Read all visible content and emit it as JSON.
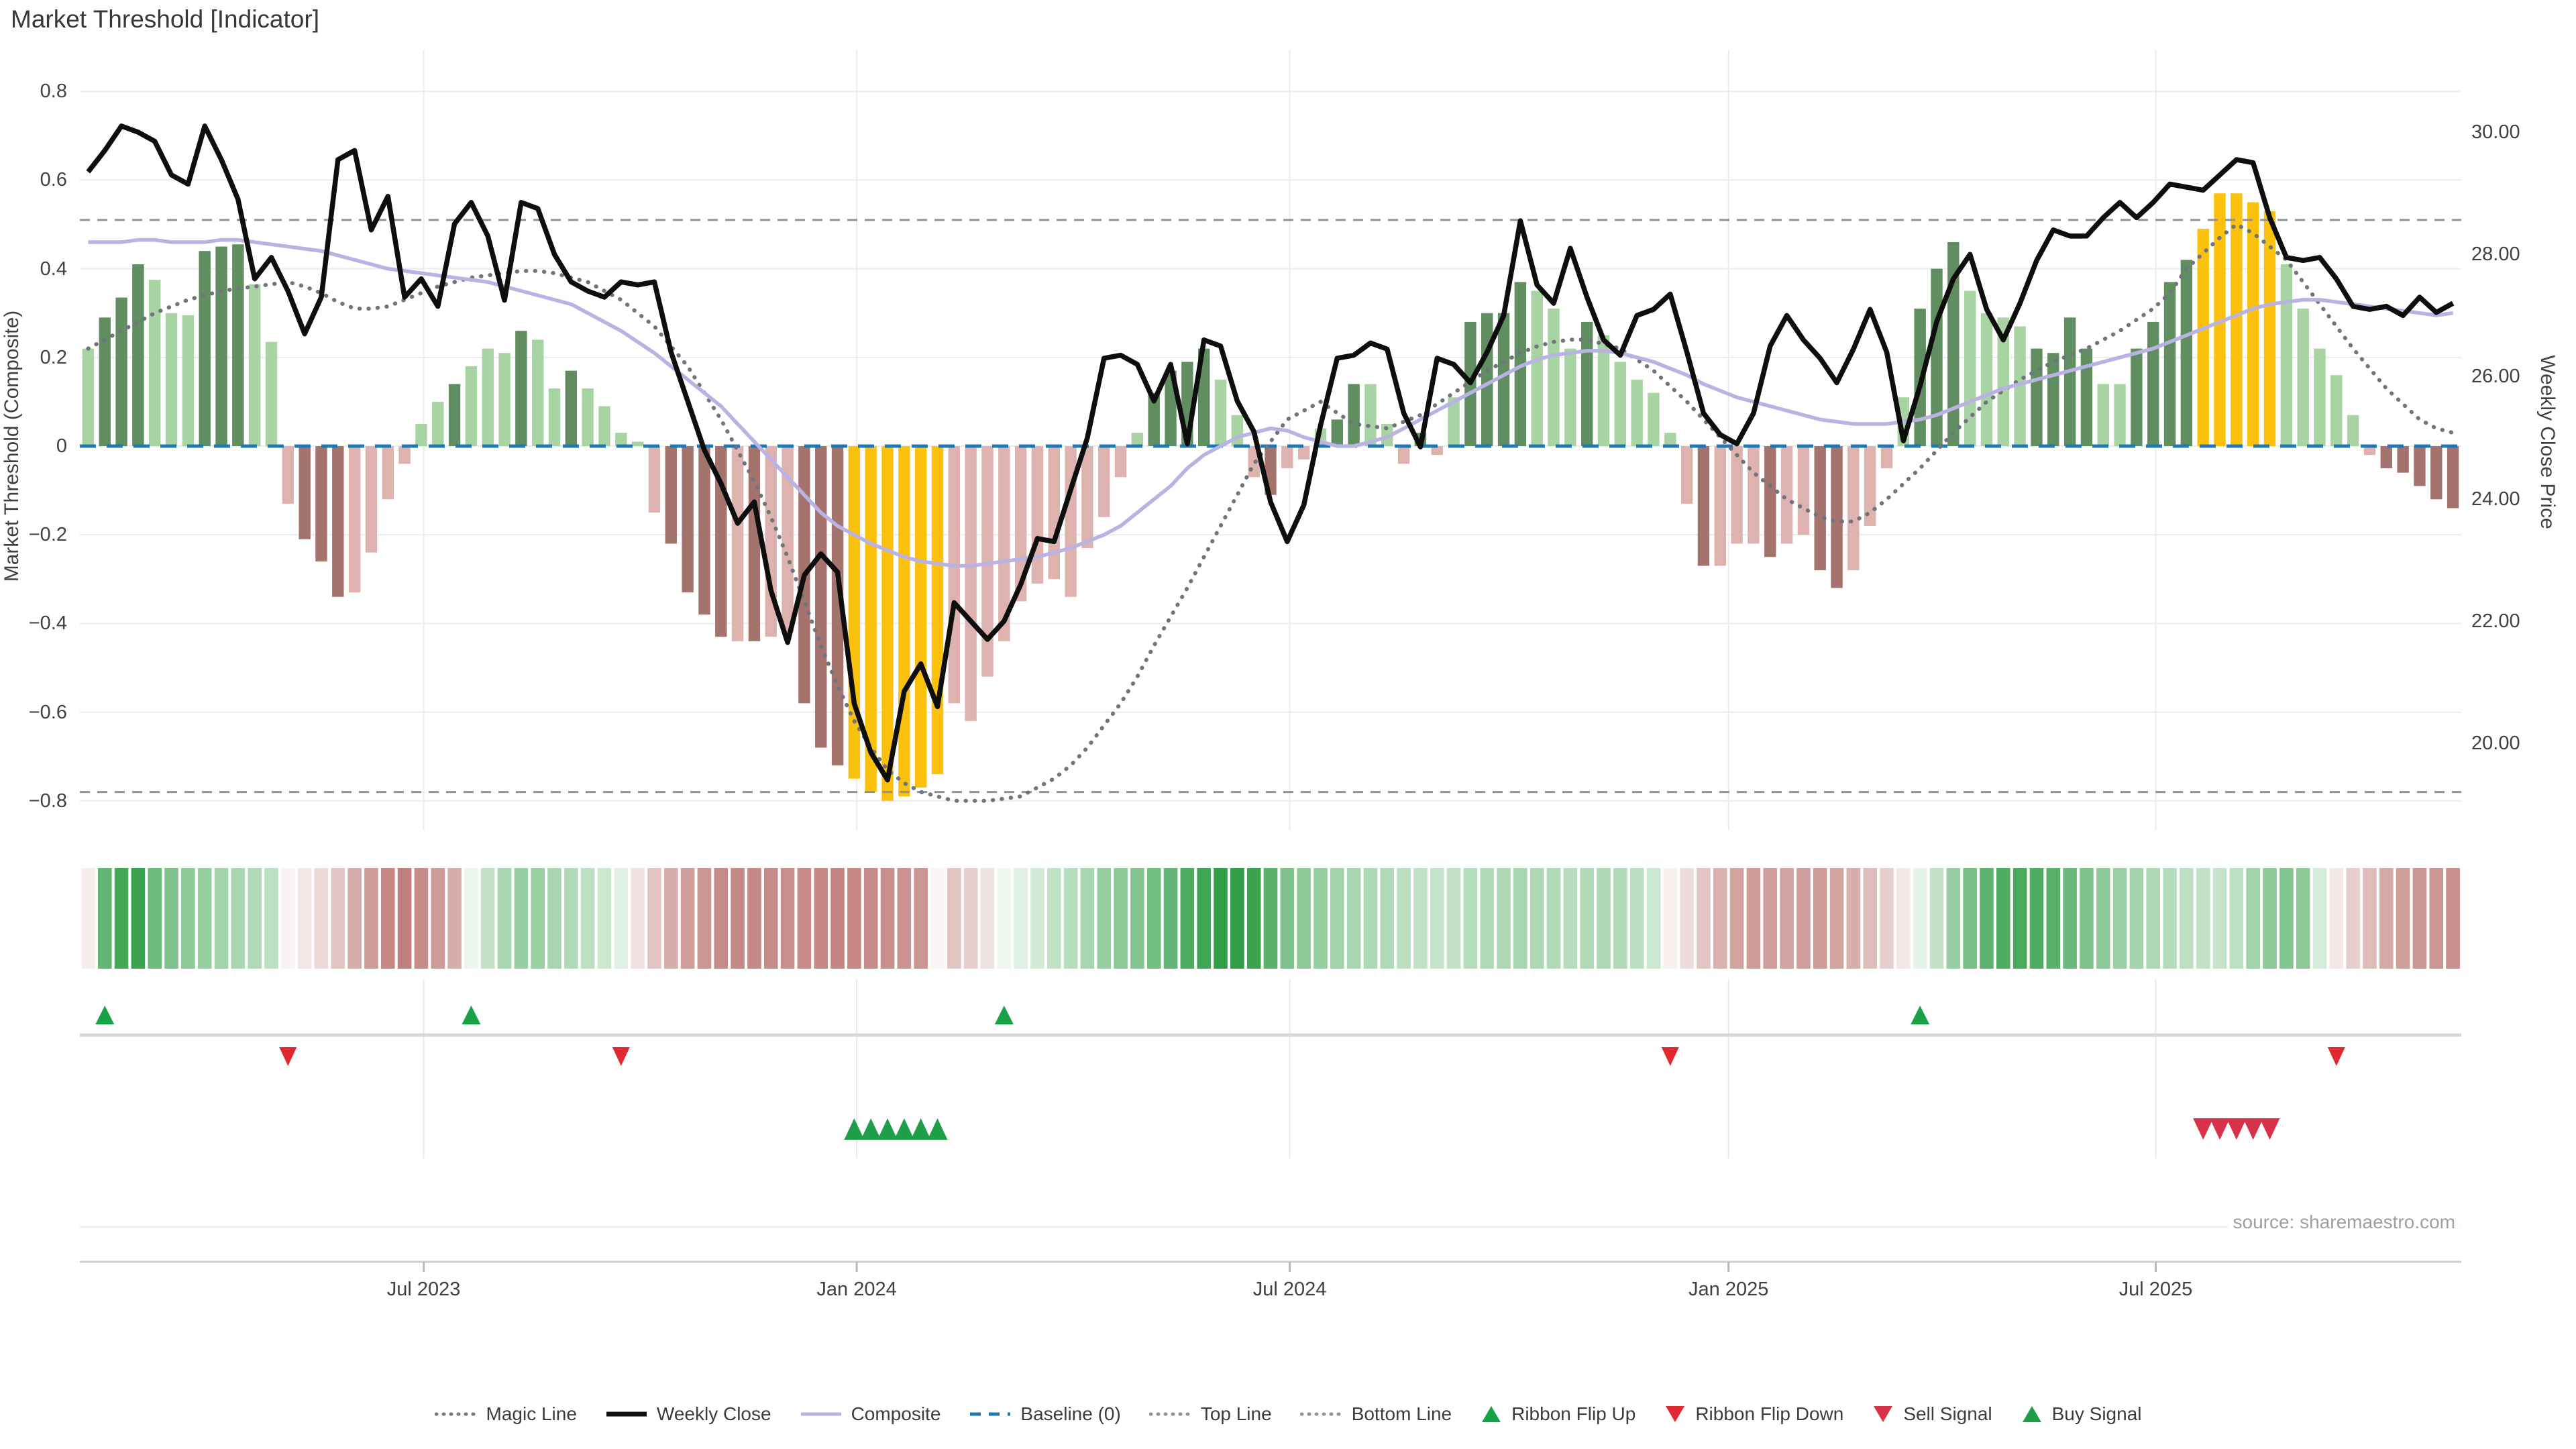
{
  "title": "Market Threshold [Indicator]",
  "source": "source: sharemaestro.com",
  "axes": {
    "left_title": "Market Threshold (Composite)",
    "left_ticks": [
      "0.8",
      "0.6",
      "0.4",
      "0.2",
      "0",
      "−0.2",
      "−0.4",
      "−0.6",
      "−0.8"
    ],
    "left_tick_values": [
      0.8,
      0.6,
      0.4,
      0.2,
      0,
      -0.2,
      -0.4,
      -0.6,
      -0.8
    ],
    "right_title": "Weekly Close Price",
    "right_ticks": [
      "30.00",
      "28.00",
      "26.00",
      "24.00",
      "22.00",
      "20.00"
    ],
    "right_tick_values": [
      30,
      28,
      26,
      24,
      22,
      20
    ],
    "x_ticks": [
      "Jul 2023",
      "Jan 2024",
      "Jul 2024",
      "Jan 2025",
      "Jul 2025"
    ],
    "x_tick_week_positions": [
      20.65,
      46.65,
      72.65,
      99.0,
      124.65
    ]
  },
  "legend": {
    "items": [
      {
        "label": "Magic Line",
        "glyph": "dotted-line",
        "color": "#73787f"
      },
      {
        "label": "Weekly Close",
        "glyph": "solid-line",
        "color": "#0e0e0e"
      },
      {
        "label": "Composite",
        "glyph": "solid-line",
        "color": "#b8b3e2"
      },
      {
        "label": "Baseline (0)",
        "glyph": "dashed-line",
        "color": "#1f77b4"
      },
      {
        "label": "Top Line",
        "glyph": "dotted-line",
        "color": "#8d929b"
      },
      {
        "label": "Bottom Line",
        "glyph": "dotted-line",
        "color": "#8d929b"
      },
      {
        "label": "Ribbon Flip Up",
        "glyph": "triangle-up",
        "color": "#17a345"
      },
      {
        "label": "Ribbon Flip Down",
        "glyph": "triangle-down",
        "color": "#e02a2f"
      },
      {
        "label": "Sell Signal",
        "glyph": "triangle-down",
        "color": "#d8324a"
      },
      {
        "label": "Buy Signal",
        "glyph": "triangle-up",
        "color": "#1e9e46"
      }
    ]
  },
  "chart_data": {
    "type": "combo: weekly bar histogram + line overlays + signal ribbon",
    "n_weeks": 143,
    "date_range_note": "weekly, Feb 2023 - Nov 2025",
    "left_axis_range": [
      -0.86,
      0.87
    ],
    "right_axis_range": [
      18.7,
      31.2
    ],
    "grid": true,
    "legend_position": "bottom-center",
    "top_line": 0.51,
    "bottom_line": -0.78,
    "baseline": 0,
    "bar_color_map": {
      "lg": "#a8d3a2",
      "dg": "#618e60",
      "lp": "#deb2ae",
      "dr": "#a4736e",
      "au": "#fcc10d"
    },
    "threshold_bars": {
      "values": [
        0.22,
        0.29,
        0.335,
        0.41,
        0.375,
        0.3,
        0.295,
        0.44,
        0.45,
        0.455,
        0.365,
        0.235,
        -0.13,
        -0.21,
        -0.26,
        -0.34,
        -0.33,
        -0.24,
        -0.12,
        -0.04,
        0.05,
        0.1,
        0.14,
        0.18,
        0.22,
        0.21,
        0.26,
        0.24,
        0.13,
        0.17,
        0.13,
        0.09,
        0.03,
        0.01,
        -0.15,
        -0.22,
        -0.33,
        -0.38,
        -0.43,
        -0.44,
        -0.44,
        -0.43,
        -0.42,
        -0.58,
        -0.68,
        -0.72,
        -0.75,
        -0.78,
        -0.8,
        -0.79,
        -0.77,
        -0.74,
        -0.58,
        -0.62,
        -0.52,
        -0.44,
        -0.35,
        -0.31,
        -0.3,
        -0.34,
        -0.23,
        -0.16,
        -0.07,
        0.03,
        0.12,
        0.17,
        0.19,
        0.22,
        0.15,
        0.07,
        -0.07,
        -0.11,
        -0.05,
        -0.03,
        0.04,
        0.06,
        0.14,
        0.14,
        0.05,
        -0.04,
        0.03,
        -0.02,
        0.11,
        0.28,
        0.3,
        0.3,
        0.37,
        0.35,
        0.31,
        0.22,
        0.28,
        0.25,
        0.19,
        0.15,
        0.12,
        0.03,
        -0.13,
        -0.27,
        -0.27,
        -0.22,
        -0.22,
        -0.25,
        -0.22,
        -0.2,
        -0.28,
        -0.32,
        -0.28,
        -0.18,
        -0.05,
        0.11,
        0.31,
        0.4,
        0.46,
        0.35,
        0.3,
        0.29,
        0.27,
        0.22,
        0.21,
        0.29,
        0.22,
        0.14,
        0.14,
        0.22,
        0.28,
        0.37,
        0.42,
        0.49,
        0.57,
        0.57,
        0.55,
        0.53,
        0.41,
        0.31,
        0.22,
        0.16,
        0.07,
        -0.02,
        -0.05,
        -0.06,
        -0.09,
        -0.12,
        -0.14
      ],
      "colors": [
        "lg",
        "dg",
        "dg",
        "dg",
        "lg",
        "lg",
        "lg",
        "dg",
        "dg",
        "dg",
        "lg",
        "lg",
        "lp",
        "dr",
        "dr",
        "dr",
        "lp",
        "lp",
        "lp",
        "lp",
        "lg",
        "lg",
        "dg",
        "lg",
        "lg",
        "lg",
        "dg",
        "lg",
        "lg",
        "dg",
        "lg",
        "lg",
        "lg",
        "lg",
        "lp",
        "dr",
        "dr",
        "dr",
        "dr",
        "lp",
        "dr",
        "lp",
        "lp",
        "dr",
        "dr",
        "dr",
        "au",
        "au",
        "au",
        "au",
        "au",
        "au",
        "lp",
        "lp",
        "lp",
        "lp",
        "lp",
        "lp",
        "lp",
        "lp",
        "lp",
        "lp",
        "lp",
        "lg",
        "dg",
        "dg",
        "dg",
        "dg",
        "lg",
        "lg",
        "lp",
        "dr",
        "lp",
        "lp",
        "lg",
        "dg",
        "dg",
        "lg",
        "lg",
        "lp",
        "dg",
        "lp",
        "lg",
        "dg",
        "dg",
        "dg",
        "dg",
        "lg",
        "lg",
        "lg",
        "dg",
        "lg",
        "lg",
        "lg",
        "lg",
        "lg",
        "lp",
        "dr",
        "lp",
        "lp",
        "lp",
        "dr",
        "lp",
        "lp",
        "dr",
        "dr",
        "lp",
        "lp",
        "lp",
        "lg",
        "dg",
        "dg",
        "dg",
        "lg",
        "lg",
        "lg",
        "lg",
        "dg",
        "dg",
        "dg",
        "dg",
        "lg",
        "lg",
        "dg",
        "dg",
        "dg",
        "dg",
        "au",
        "au",
        "au",
        "au",
        "au",
        "lg",
        "lg",
        "lg",
        "lg",
        "lg",
        "lp",
        "dr",
        "dr",
        "dr",
        "dr",
        "dr"
      ]
    },
    "weekly_close": [
      29.35,
      29.7,
      30.1,
      30.0,
      29.85,
      29.3,
      29.15,
      30.1,
      29.55,
      28.9,
      27.6,
      27.95,
      27.4,
      26.7,
      27.3,
      29.55,
      29.7,
      28.4,
      28.95,
      27.3,
      27.6,
      27.15,
      28.5,
      28.85,
      28.3,
      27.25,
      28.85,
      28.75,
      28.0,
      27.55,
      27.4,
      27.3,
      27.55,
      27.5,
      27.55,
      26.4,
      25.6,
      24.8,
      24.25,
      23.6,
      23.95,
      22.5,
      21.65,
      22.75,
      23.1,
      22.8,
      20.65,
      19.85,
      19.4,
      20.85,
      21.3,
      20.6,
      22.3,
      22.0,
      21.7,
      22.0,
      22.6,
      23.35,
      23.3,
      24.15,
      25.0,
      26.3,
      26.35,
      26.2,
      25.6,
      26.2,
      24.9,
      26.6,
      26.5,
      25.6,
      25.1,
      23.95,
      23.3,
      23.9,
      25.2,
      26.3,
      26.35,
      26.55,
      26.45,
      25.4,
      24.85,
      26.3,
      26.2,
      25.9,
      26.4,
      27.0,
      28.55,
      27.5,
      27.2,
      28.1,
      27.3,
      26.6,
      26.35,
      27.0,
      27.1,
      27.35,
      26.4,
      25.4,
      25.05,
      24.9,
      25.4,
      26.5,
      27.0,
      26.6,
      26.3,
      25.9,
      26.45,
      27.1,
      26.4,
      24.95,
      25.85,
      26.9,
      27.6,
      28.0,
      27.1,
      26.6,
      27.2,
      27.9,
      28.4,
      28.3,
      28.3,
      28.6,
      28.85,
      28.6,
      28.85,
      29.15,
      29.1,
      29.05,
      29.3,
      29.55,
      29.5,
      28.6,
      27.95,
      27.9,
      27.95,
      27.6,
      27.15,
      27.1,
      27.15,
      27.0,
      27.3,
      27.05,
      27.2
    ],
    "composite": [
      0.46,
      0.46,
      0.46,
      0.465,
      0.465,
      0.46,
      0.46,
      0.46,
      0.465,
      0.465,
      0.46,
      0.455,
      0.45,
      0.445,
      0.44,
      0.43,
      0.42,
      0.41,
      0.4,
      0.395,
      0.39,
      0.385,
      0.38,
      0.375,
      0.37,
      0.36,
      0.35,
      0.34,
      0.33,
      0.32,
      0.3,
      0.28,
      0.26,
      0.235,
      0.21,
      0.18,
      0.15,
      0.12,
      0.09,
      0.05,
      0.01,
      -0.03,
      -0.07,
      -0.11,
      -0.15,
      -0.18,
      -0.2,
      -0.22,
      -0.235,
      -0.25,
      -0.26,
      -0.265,
      -0.27,
      -0.27,
      -0.265,
      -0.26,
      -0.255,
      -0.25,
      -0.24,
      -0.23,
      -0.215,
      -0.2,
      -0.18,
      -0.15,
      -0.12,
      -0.09,
      -0.05,
      -0.02,
      0.0,
      0.02,
      0.03,
      0.04,
      0.035,
      0.02,
      0.01,
      0.0,
      0.0,
      0.01,
      0.02,
      0.04,
      0.06,
      0.08,
      0.1,
      0.12,
      0.14,
      0.16,
      0.18,
      0.195,
      0.205,
      0.21,
      0.215,
      0.215,
      0.21,
      0.2,
      0.19,
      0.175,
      0.16,
      0.14,
      0.125,
      0.11,
      0.1,
      0.09,
      0.08,
      0.07,
      0.06,
      0.055,
      0.05,
      0.05,
      0.05,
      0.055,
      0.06,
      0.07,
      0.085,
      0.1,
      0.115,
      0.13,
      0.14,
      0.15,
      0.16,
      0.17,
      0.18,
      0.19,
      0.2,
      0.21,
      0.22,
      0.235,
      0.25,
      0.265,
      0.28,
      0.295,
      0.31,
      0.32,
      0.325,
      0.33,
      0.33,
      0.325,
      0.32,
      0.315,
      0.31,
      0.305,
      0.3,
      0.295,
      0.3
    ],
    "magic_line": [
      0.22,
      0.24,
      0.26,
      0.28,
      0.3,
      0.315,
      0.33,
      0.34,
      0.35,
      0.355,
      0.36,
      0.365,
      0.37,
      0.36,
      0.345,
      0.325,
      0.31,
      0.31,
      0.315,
      0.33,
      0.345,
      0.36,
      0.37,
      0.38,
      0.385,
      0.39,
      0.395,
      0.395,
      0.39,
      0.38,
      0.37,
      0.35,
      0.33,
      0.3,
      0.27,
      0.225,
      0.18,
      0.12,
      0.06,
      -0.01,
      -0.08,
      -0.16,
      -0.25,
      -0.35,
      -0.45,
      -0.54,
      -0.62,
      -0.68,
      -0.73,
      -0.76,
      -0.78,
      -0.79,
      -0.8,
      -0.8,
      -0.8,
      -0.795,
      -0.79,
      -0.77,
      -0.75,
      -0.72,
      -0.68,
      -0.63,
      -0.58,
      -0.52,
      -0.45,
      -0.385,
      -0.32,
      -0.25,
      -0.18,
      -0.11,
      -0.04,
      0.01,
      0.06,
      0.08,
      0.1,
      0.075,
      0.05,
      0.045,
      0.04,
      0.055,
      0.07,
      0.095,
      0.12,
      0.145,
      0.17,
      0.19,
      0.21,
      0.225,
      0.235,
      0.24,
      0.24,
      0.23,
      0.22,
      0.195,
      0.17,
      0.135,
      0.1,
      0.06,
      0.02,
      -0.02,
      -0.06,
      -0.09,
      -0.12,
      -0.14,
      -0.16,
      -0.17,
      -0.17,
      -0.15,
      -0.12,
      -0.085,
      -0.05,
      -0.01,
      0.03,
      0.065,
      0.1,
      0.125,
      0.15,
      0.17,
      0.19,
      0.205,
      0.22,
      0.24,
      0.26,
      0.285,
      0.31,
      0.345,
      0.4,
      0.435,
      0.47,
      0.5,
      0.48,
      0.45,
      0.42,
      0.37,
      0.32,
      0.27,
      0.22,
      0.175,
      0.13,
      0.095,
      0.06,
      0.04,
      0.03
    ],
    "ribbon": [
      -0.1,
      0.75,
      0.9,
      0.95,
      0.7,
      0.62,
      0.55,
      0.5,
      0.45,
      0.42,
      0.38,
      0.32,
      -0.06,
      -0.12,
      -0.2,
      -0.3,
      -0.42,
      -0.52,
      -0.62,
      -0.66,
      -0.6,
      -0.52,
      -0.42,
      0.1,
      0.3,
      0.42,
      0.5,
      0.48,
      0.42,
      0.38,
      0.32,
      0.25,
      0.15,
      -0.15,
      -0.3,
      -0.42,
      -0.5,
      -0.55,
      -0.6,
      -0.62,
      -0.62,
      -0.6,
      -0.58,
      -0.6,
      -0.62,
      -0.64,
      -0.62,
      -0.6,
      -0.58,
      -0.56,
      -0.55,
      -0.05,
      -0.3,
      -0.25,
      -0.15,
      0.08,
      0.15,
      0.22,
      0.3,
      0.35,
      0.42,
      0.5,
      0.55,
      0.6,
      0.68,
      0.75,
      0.85,
      0.92,
      1.0,
      1.0,
      0.95,
      0.8,
      0.62,
      0.55,
      0.5,
      0.45,
      0.42,
      0.4,
      0.38,
      0.33,
      0.3,
      0.28,
      0.3,
      0.35,
      0.38,
      0.4,
      0.42,
      0.4,
      0.38,
      0.35,
      0.38,
      0.4,
      0.38,
      0.33,
      0.25,
      -0.08,
      -0.18,
      -0.3,
      -0.4,
      -0.48,
      -0.52,
      -0.5,
      -0.48,
      -0.5,
      -0.52,
      -0.48,
      -0.42,
      -0.35,
      -0.25,
      -0.12,
      0.12,
      0.3,
      0.5,
      0.65,
      0.78,
      0.85,
      0.88,
      0.85,
      0.8,
      0.72,
      0.62,
      0.55,
      0.48,
      0.44,
      0.4,
      0.36,
      0.32,
      0.3,
      0.28,
      0.32,
      0.45,
      0.55,
      0.6,
      0.55,
      0.2,
      -0.12,
      -0.25,
      -0.35,
      -0.45,
      -0.5,
      -0.55,
      -0.55,
      -0.58
    ],
    "signals": {
      "ribbon_flip_up_weeks": [
        1,
        23,
        55,
        110
      ],
      "ribbon_flip_down_weeks": [
        12,
        32,
        95,
        135
      ],
      "buy_signal_weeks": [
        46,
        47,
        48,
        49,
        50,
        51
      ],
      "sell_signal_weeks": [
        127,
        128,
        129,
        130,
        131
      ]
    },
    "series_colors": {
      "weekly_close": "#0e0e0e",
      "composite": "#b8b3e2",
      "magic_line": "#6f747d",
      "baseline": "#1f77b4",
      "top_bottom_line": "#8d929b",
      "ribbon_green": "#2f9e44",
      "ribbon_red": "#a13f3b",
      "flip_up": "#17a345",
      "flip_down": "#e02a2f",
      "buy": "#1e9e46",
      "sell": "#d8324a"
    }
  }
}
